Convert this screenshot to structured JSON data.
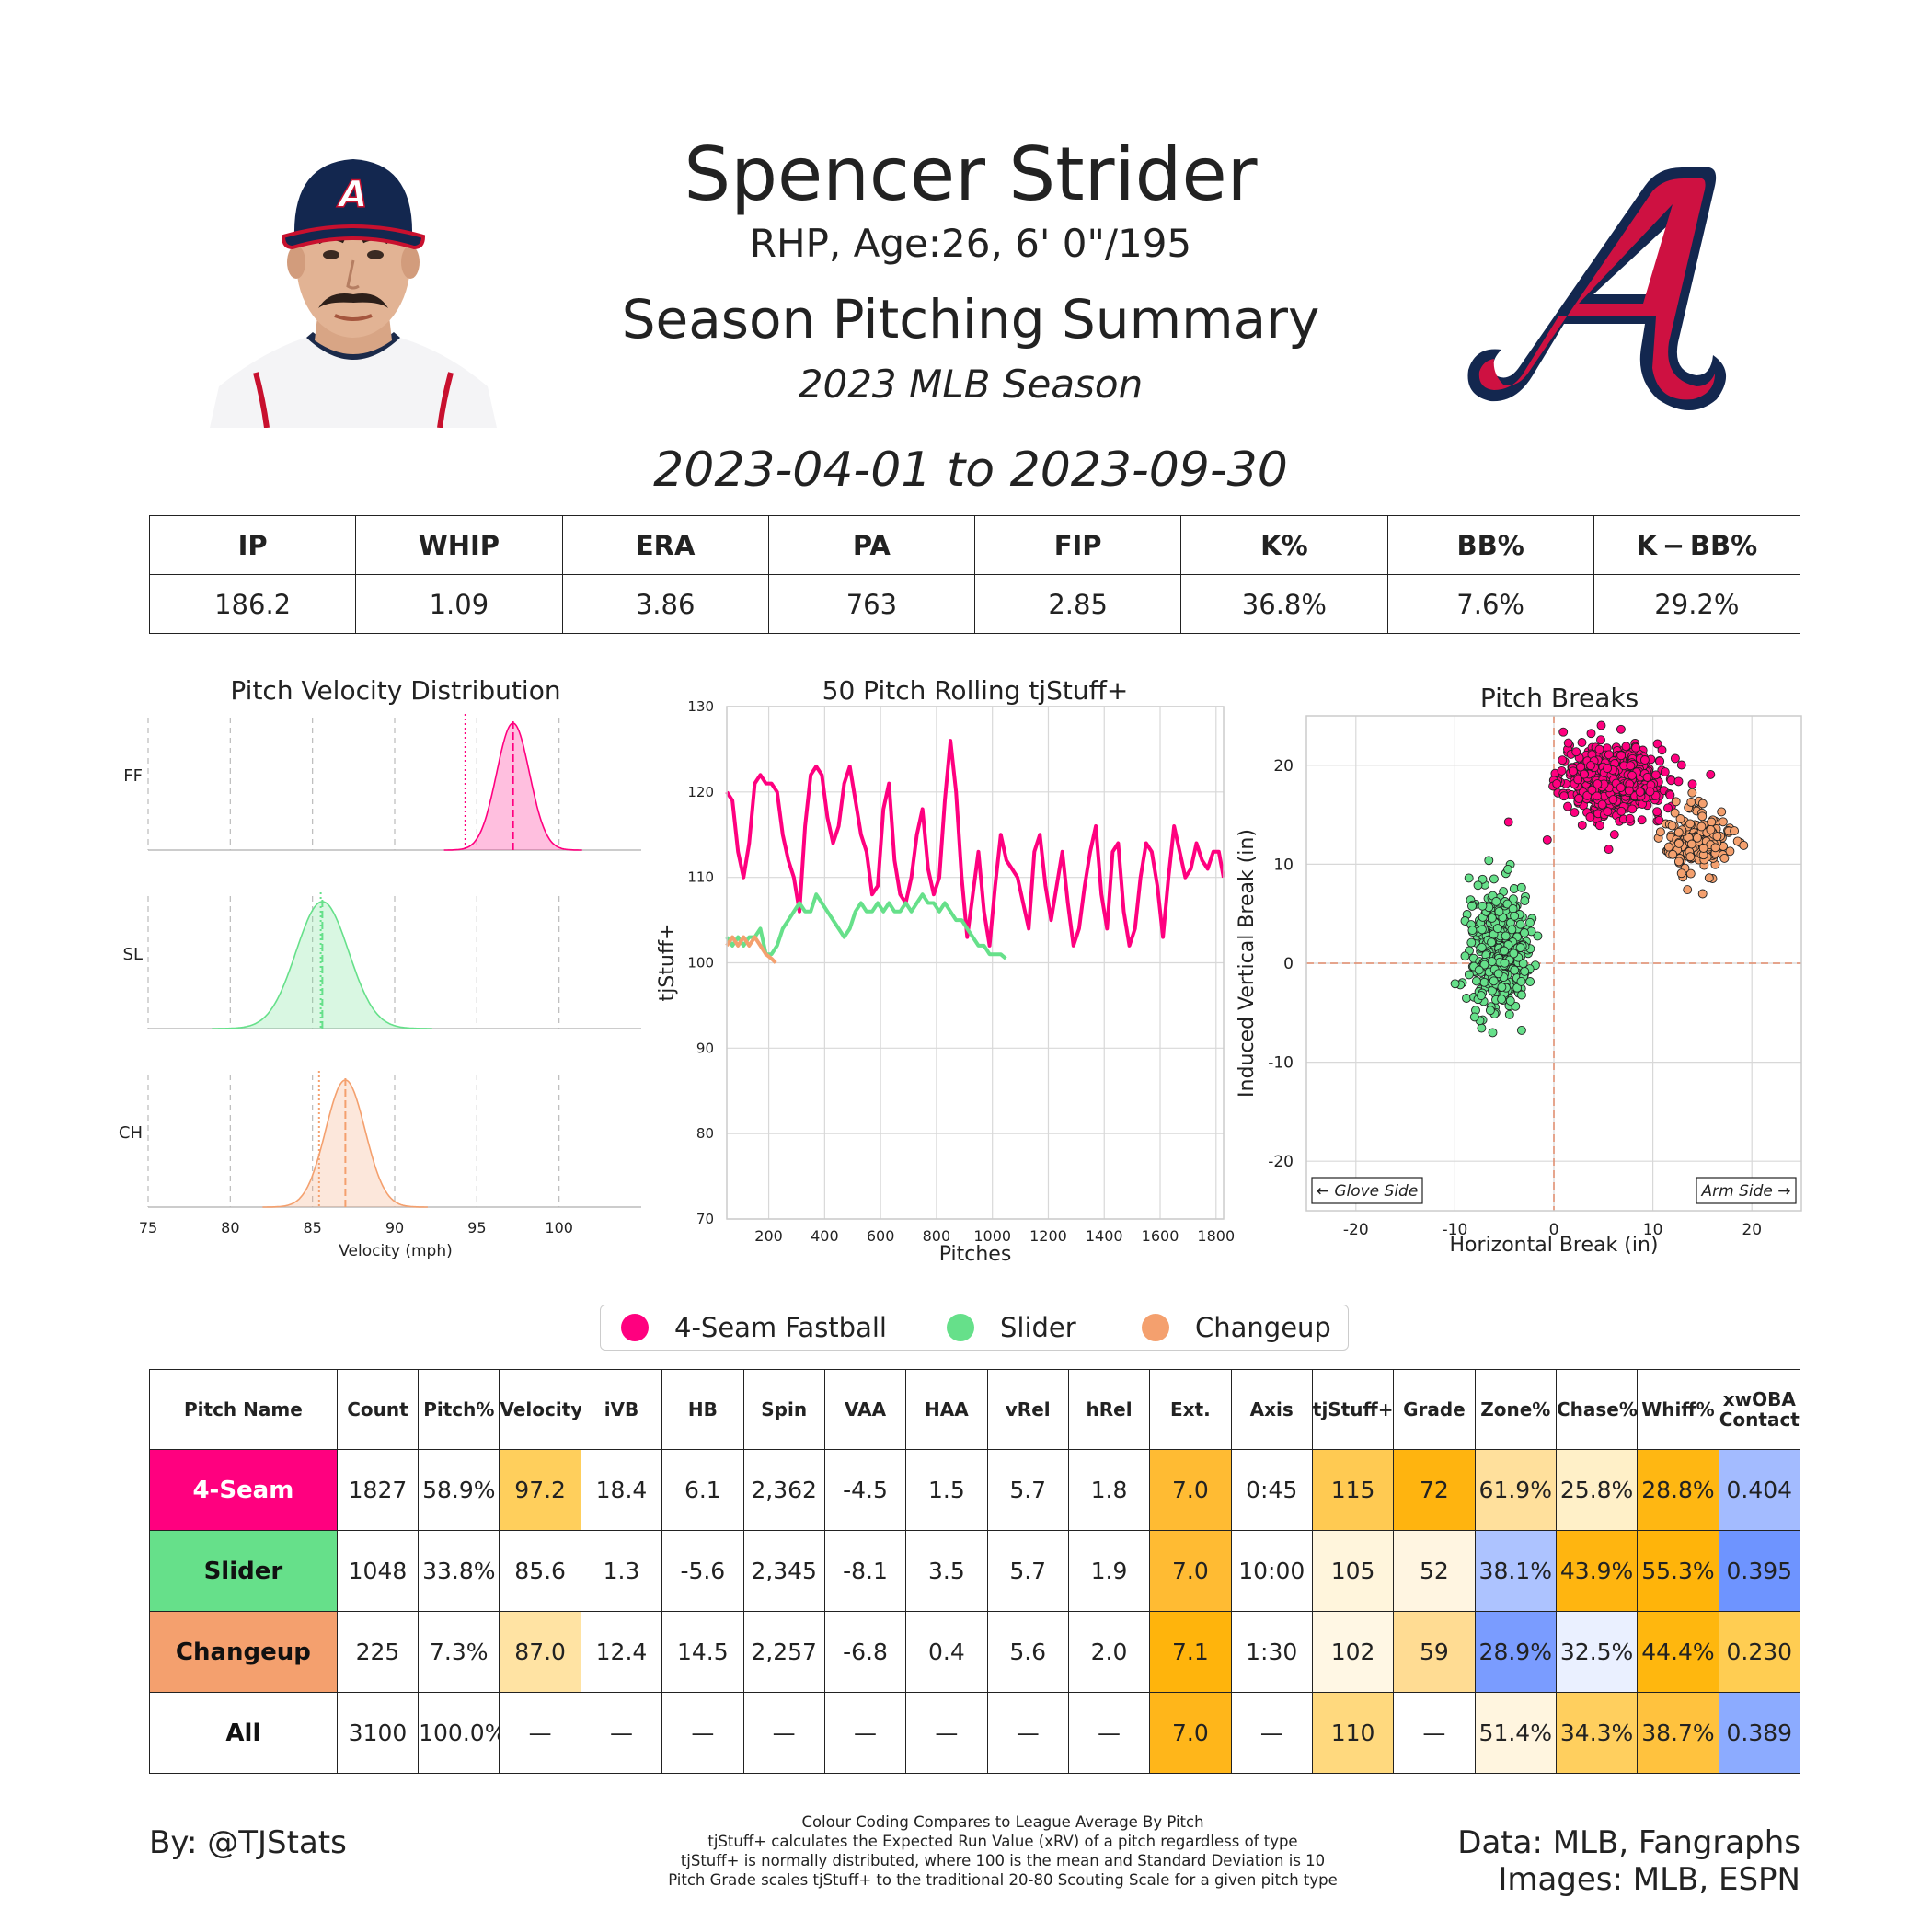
{
  "header": {
    "name": "Spencer Strider",
    "info": "RHP, Age:26, 6' 0\"/195",
    "summary_title": "Season Pitching Summary",
    "season": "2023 MLB Season",
    "date_range": "2023-04-01 to 2023-09-30"
  },
  "season_stats": {
    "headers": [
      "IP",
      "WHIP",
      "ERA",
      "PA",
      "FIP",
      "K%",
      "BB%",
      "K − BB%"
    ],
    "values": [
      "186.2",
      "1.09",
      "3.86",
      "763",
      "2.85",
      "36.8%",
      "7.6%",
      "29.2%"
    ]
  },
  "colors": {
    "ff": "#ff007f",
    "sl": "#66e08a",
    "ch": "#f4a06e"
  },
  "chart_data": [
    {
      "type": "area",
      "title": "Pitch Velocity Distribution",
      "xlabel": "Velocity (mph)",
      "xlim": [
        75,
        105
      ],
      "xticks": [
        75,
        80,
        85,
        90,
        95,
        100
      ],
      "series": [
        {
          "name": "FF",
          "mean": 97.2,
          "league_mean": 94.3,
          "sd": 1.0
        },
        {
          "name": "SL",
          "mean": 85.6,
          "league_mean": 85.5,
          "sd": 1.6
        },
        {
          "name": "CH",
          "mean": 87.0,
          "league_mean": 85.4,
          "sd": 1.2
        }
      ]
    },
    {
      "type": "line",
      "title": "50 Pitch Rolling tjStuff+",
      "xlabel": "Pitches",
      "ylabel": "tjStuff+",
      "xlim": [
        50,
        1827
      ],
      "ylim": [
        70,
        130
      ],
      "xticks": [
        200,
        400,
        600,
        800,
        1000,
        1200,
        1400,
        1600,
        1800
      ],
      "yticks": [
        70,
        80,
        90,
        100,
        110,
        120,
        130
      ],
      "series": [
        {
          "name": "4-Seam Fastball",
          "x": [
            50,
            70,
            90,
            110,
            130,
            150,
            170,
            190,
            210,
            230,
            250,
            270,
            290,
            310,
            330,
            350,
            370,
            390,
            410,
            430,
            450,
            470,
            490,
            510,
            530,
            550,
            570,
            590,
            610,
            630,
            650,
            670,
            690,
            710,
            730,
            750,
            770,
            790,
            810,
            830,
            850,
            870,
            890,
            910,
            930,
            950,
            970,
            990,
            1010,
            1030,
            1050,
            1070,
            1090,
            1110,
            1130,
            1150,
            1170,
            1190,
            1210,
            1230,
            1250,
            1270,
            1290,
            1310,
            1330,
            1350,
            1370,
            1390,
            1410,
            1430,
            1450,
            1470,
            1490,
            1510,
            1530,
            1550,
            1570,
            1590,
            1610,
            1630,
            1650,
            1670,
            1690,
            1710,
            1730,
            1750,
            1770,
            1790,
            1810,
            1827
          ],
          "y": [
            120,
            119,
            113,
            110,
            114,
            121,
            122,
            121,
            121,
            120,
            115,
            112,
            110,
            106,
            116,
            122,
            123,
            122,
            117,
            114,
            116,
            121,
            123,
            119,
            115,
            113,
            108,
            109,
            118,
            121,
            112,
            108,
            107,
            110,
            115,
            118,
            111,
            108,
            110,
            119,
            126,
            120,
            110,
            103,
            108,
            113,
            106,
            102,
            109,
            115,
            112,
            111,
            110,
            107,
            104,
            113,
            115,
            109,
            105,
            109,
            113,
            107,
            102,
            104,
            109,
            113,
            116,
            108,
            104,
            113,
            114,
            106,
            102,
            104,
            110,
            114,
            113,
            109,
            103,
            110,
            116,
            113,
            110,
            111,
            114,
            112,
            111,
            113,
            113,
            110
          ]
        },
        {
          "name": "Slider",
          "x": [
            50,
            70,
            90,
            110,
            130,
            150,
            170,
            190,
            210,
            230,
            250,
            270,
            290,
            310,
            330,
            350,
            370,
            390,
            410,
            430,
            450,
            470,
            490,
            510,
            530,
            550,
            570,
            590,
            610,
            630,
            650,
            670,
            690,
            710,
            730,
            750,
            770,
            790,
            810,
            830,
            850,
            870,
            890,
            910,
            930,
            950,
            970,
            990,
            1010,
            1030,
            1048
          ],
          "y": [
            103,
            102,
            103,
            102,
            103,
            103,
            104,
            101,
            101,
            102,
            104,
            105,
            106,
            107,
            106,
            106,
            108,
            107,
            106,
            105,
            104,
            103,
            104,
            106,
            107,
            106,
            106,
            107,
            106,
            107,
            106,
            106,
            107,
            106,
            107,
            108,
            107,
            107,
            106,
            107,
            106,
            105,
            105,
            104,
            103,
            102,
            102,
            101,
            101,
            101,
            100.5
          ]
        },
        {
          "name": "Changeup",
          "x": [
            50,
            70,
            90,
            110,
            130,
            150,
            170,
            190,
            210,
            225
          ],
          "y": [
            102,
            103,
            102,
            103,
            102,
            103,
            102,
            101,
            100.5,
            100
          ]
        }
      ]
    },
    {
      "type": "scatter",
      "title": "Pitch Breaks",
      "xlabel": "Horizontal Break (in)",
      "ylabel": "Induced Vertical Break (in)",
      "xlim": [
        -25,
        25
      ],
      "ylim": [
        -25,
        25
      ],
      "xticks": [
        -20,
        -10,
        0,
        10,
        20
      ],
      "yticks": [
        -20,
        -10,
        0,
        10,
        20
      ],
      "annotations": [
        "← Glove Side",
        "Arm Side →"
      ],
      "series": [
        {
          "name": "4-Seam Fastball",
          "center": [
            6.1,
            18.4
          ],
          "spread": [
            2.5,
            1.7
          ]
        },
        {
          "name": "Slider",
          "center": [
            -5.6,
            1.3
          ],
          "spread": [
            1.5,
            3.0
          ]
        },
        {
          "name": "Changeup",
          "center": [
            14.5,
            12.4
          ],
          "spread": [
            1.6,
            1.7
          ]
        }
      ]
    }
  ],
  "legend": [
    "4-Seam Fastball",
    "Slider",
    "Changeup"
  ],
  "pitch_table": {
    "headers": [
      "Pitch Name",
      "Count",
      "Pitch%",
      "Velocity",
      "iVB",
      "HB",
      "Spin",
      "VAA",
      "HAA",
      "vRel",
      "hRel",
      "Ext.",
      "Axis",
      "tjStuff+",
      "Grade",
      "Zone%",
      "Chase%",
      "Whiff%",
      "xwOBA Contact"
    ],
    "rows": [
      {
        "cells": [
          "4-Seam",
          "1827",
          "58.9%",
          "97.2",
          "18.4",
          "6.1",
          "2,362",
          "-4.5",
          "1.5",
          "5.7",
          "1.8",
          "7.0",
          "0:45",
          "115",
          "72",
          "61.9%",
          "25.8%",
          "28.8%",
          "0.404"
        ],
        "colors": [
          "#ff007f",
          "#ffffff",
          "#ffffff",
          "#ffcf5c",
          "#ffffff",
          "#ffffff",
          "#ffffff",
          "#ffffff",
          "#ffffff",
          "#ffffff",
          "#ffffff",
          "#ffbb33",
          "#ffffff",
          "#ffca52",
          "#ffb40f",
          "#ffe09c",
          "#fff0c8",
          "#ffb712",
          "#a3bbff"
        ],
        "name_color": "#ffffff"
      },
      {
        "cells": [
          "Slider",
          "1048",
          "33.8%",
          "85.6",
          "1.3",
          "-5.6",
          "2,345",
          "-8.1",
          "3.5",
          "5.7",
          "1.9",
          "7.0",
          "10:00",
          "105",
          "52",
          "38.1%",
          "43.9%",
          "55.3%",
          "0.395"
        ],
        "colors": [
          "#66e08a",
          "#ffffff",
          "#ffffff",
          "#ffffff",
          "#ffffff",
          "#ffffff",
          "#ffffff",
          "#ffffff",
          "#ffffff",
          "#ffffff",
          "#ffffff",
          "#ffbb33",
          "#ffffff",
          "#fff5dc",
          "#fff5e1",
          "#adc3ff",
          "#ffb510",
          "#ffb40a",
          "#6e94ff"
        ],
        "name_color": "#111111"
      },
      {
        "cells": [
          "Changeup",
          "225",
          "7.3%",
          "87.0",
          "12.4",
          "14.5",
          "2,257",
          "-6.8",
          "0.4",
          "5.6",
          "2.0",
          "7.1",
          "1:30",
          "102",
          "59",
          "28.9%",
          "32.5%",
          "44.4%",
          "0.230"
        ],
        "colors": [
          "#f4a06e",
          "#ffffff",
          "#ffffff",
          "#ffe3a3",
          "#ffffff",
          "#ffffff",
          "#ffffff",
          "#ffffff",
          "#ffffff",
          "#ffffff",
          "#ffffff",
          "#ffb40c",
          "#ffffff",
          "#fff7e4",
          "#ffdc93",
          "#7a9cff",
          "#eaf0ff",
          "#ffb70e",
          "#ffcd52"
        ],
        "name_color": "#111111"
      },
      {
        "cells": [
          "All",
          "3100",
          "100.0%",
          "—",
          "—",
          "—",
          "—",
          "—",
          "—",
          "—",
          "—",
          "7.0",
          "—",
          "110",
          "—",
          "51.4%",
          "34.3%",
          "38.7%",
          "0.389"
        ],
        "colors": [
          "#ffffff",
          "#ffffff",
          "#ffffff",
          "#ffffff",
          "#ffffff",
          "#ffffff",
          "#ffffff",
          "#ffffff",
          "#ffffff",
          "#ffffff",
          "#ffffff",
          "#ffb61a",
          "#ffffff",
          "#ffd97e",
          "#ffffff",
          "#fff5df",
          "#ffcf5e",
          "#ffc23e",
          "#8cabff"
        ],
        "name_color": "#111111"
      }
    ]
  },
  "footer": {
    "by": "By: @TJStats",
    "notes": [
      "Colour Coding Compares to League Average By Pitch",
      "tjStuff+ calculates the Expected Run Value (xRV) of a pitch regardless of type",
      "tjStuff+ is normally distributed, where 100 is the mean and Standard Deviation is 10",
      "Pitch Grade scales tjStuff+ to the traditional 20-80 Scouting Scale for a given pitch type"
    ],
    "data_line1": "Data: MLB, Fangraphs",
    "data_line2": "Images: MLB, ESPN"
  }
}
